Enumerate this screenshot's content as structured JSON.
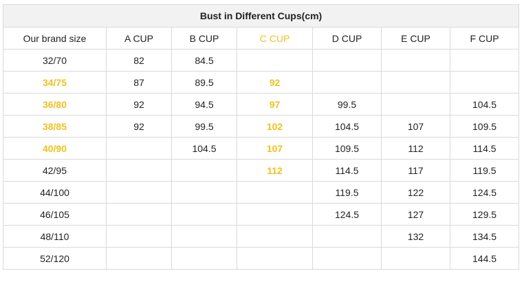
{
  "table": {
    "title": "Bust in Different Cups(cm)",
    "columns": [
      "Our brand size",
      "A CUP",
      "B CUP",
      "C CUP",
      "D CUP",
      "E CUP",
      "F CUP"
    ],
    "highlight_color": "#f0c020",
    "highlighted_column_index": 3,
    "rows": [
      {
        "size": "32/70",
        "highlight": false,
        "cells": [
          "82",
          "84.5",
          "",
          "",
          "",
          ""
        ]
      },
      {
        "size": "34/75",
        "highlight": true,
        "cells": [
          "87",
          "89.5",
          "92",
          "",
          "",
          ""
        ]
      },
      {
        "size": "36/80",
        "highlight": true,
        "cells": [
          "92",
          "94.5",
          "97",
          "99.5",
          "",
          "104.5"
        ]
      },
      {
        "size": "38/85",
        "highlight": true,
        "cells": [
          "92",
          "99.5",
          "102",
          "104.5",
          "107",
          "109.5"
        ]
      },
      {
        "size": "40/90",
        "highlight": true,
        "cells": [
          "",
          "104.5",
          "107",
          "109.5",
          "112",
          "114.5"
        ]
      },
      {
        "size": "42/95",
        "highlight": false,
        "cells": [
          "",
          "",
          "112",
          "114.5",
          "117",
          "119.5"
        ]
      },
      {
        "size": "44/100",
        "highlight": false,
        "cells": [
          "",
          "",
          "",
          "119.5",
          "122",
          "124.5"
        ]
      },
      {
        "size": "46/105",
        "highlight": false,
        "cells": [
          "",
          "",
          "",
          "124.5",
          "127",
          "129.5"
        ]
      },
      {
        "size": "48/110",
        "highlight": false,
        "cells": [
          "",
          "",
          "",
          "",
          "132",
          "134.5"
        ]
      },
      {
        "size": "52/120",
        "highlight": false,
        "cells": [
          "",
          "",
          "",
          "",
          "",
          "144.5"
        ]
      }
    ]
  }
}
